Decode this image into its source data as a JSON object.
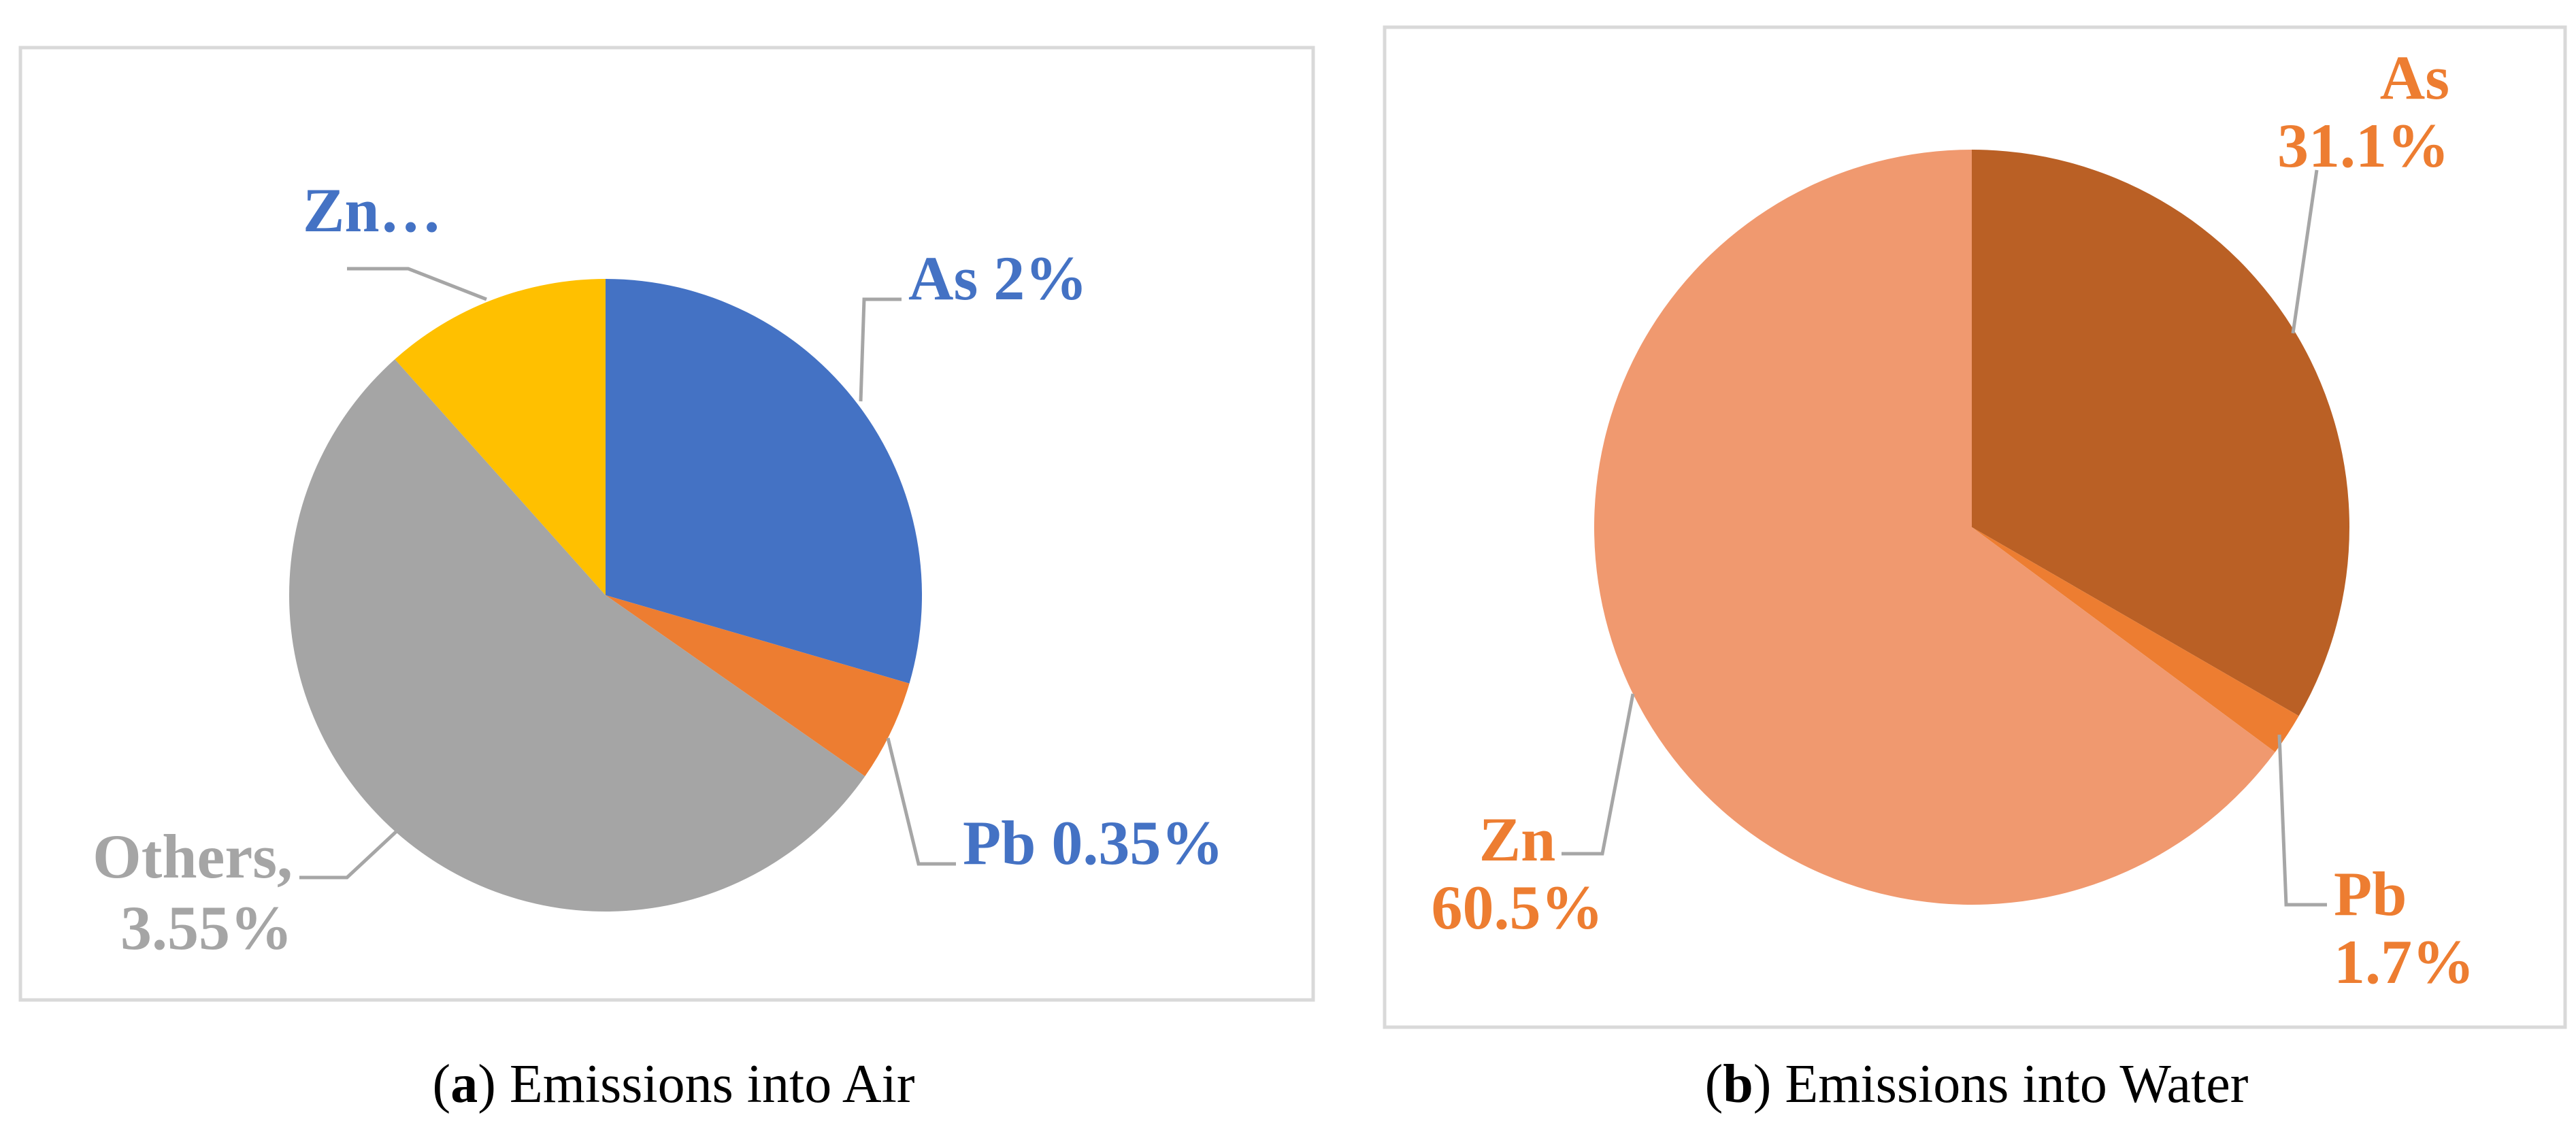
{
  "chart_data": [
    {
      "type": "pie",
      "caption_letter": "a",
      "caption_text": "Emissions into Air",
      "start_angle": 0,
      "direction": "clockwise",
      "slices": [
        {
          "key": "as",
          "value": 29.5,
          "color": "#4472c4",
          "label_color": "#4472c4",
          "label_lines": [
            "As 2%"
          ]
        },
        {
          "key": "pb",
          "value": 5.2,
          "color": "#ed7d31",
          "label_color": "#4472c4",
          "label_lines": [
            "Pb 0.35%"
          ]
        },
        {
          "key": "others",
          "value": 53.7,
          "color": "#a5a5a5",
          "label_color": "#a5a5a5",
          "label_lines": [
            "Others,",
            "3.55%"
          ]
        },
        {
          "key": "zn",
          "value": 11.6,
          "color": "#ffc000",
          "label_color": "#4472c4",
          "label_lines": [
            "Zn…"
          ]
        }
      ]
    },
    {
      "type": "pie",
      "caption_letter": "b",
      "caption_text": "Emissions into Water",
      "start_angle": 0,
      "direction": "clockwise",
      "slices": [
        {
          "key": "as",
          "value": 31.1,
          "color": "#ba6025",
          "label_color": "#ed7d31",
          "label_lines": [
            "As",
            "31.1%"
          ]
        },
        {
          "key": "pb",
          "value": 1.7,
          "color": "#ed7d31",
          "label_color": "#ed7d31",
          "label_lines": [
            "Pb",
            "1.7%"
          ]
        },
        {
          "key": "zn",
          "value": 60.5,
          "color": "#f0996f",
          "label_color": "#ed7d31",
          "label_lines": [
            "Zn",
            "60.5%"
          ]
        }
      ]
    }
  ]
}
